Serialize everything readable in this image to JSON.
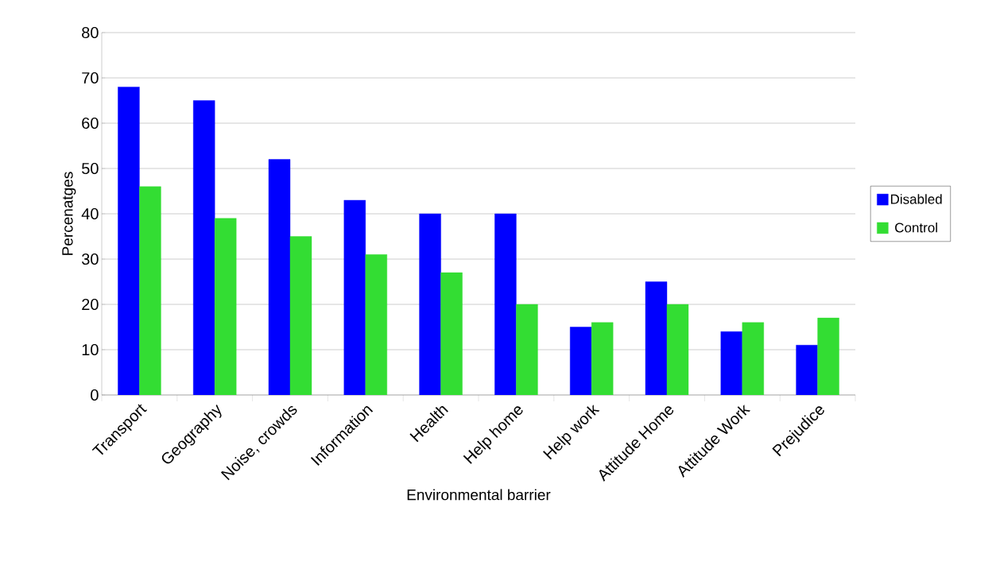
{
  "chart_data": {
    "type": "bar",
    "xlabel": "Environmental barrier",
    "ylabel": "Percenatges",
    "categories": [
      "Transport",
      "Geography",
      "Noise, crowds",
      "Information",
      "Health",
      "Help home",
      "Help work",
      "Attitude Home",
      "Attitude Work",
      "Prejudice"
    ],
    "series": [
      {
        "name": "Disabled",
        "color": "#0000ff",
        "values": [
          68,
          65,
          52,
          43,
          40,
          40,
          15,
          25,
          14,
          11
        ]
      },
      {
        "name": "Control",
        "color": "#33dd33",
        "values": [
          46,
          39,
          35,
          31,
          27,
          20,
          16,
          20,
          16,
          17
        ]
      }
    ],
    "ylim": [
      0,
      80
    ],
    "yticks": [
      0,
      10,
      20,
      30,
      40,
      50,
      60,
      70,
      80
    ],
    "grid": "y",
    "legend": "right"
  }
}
